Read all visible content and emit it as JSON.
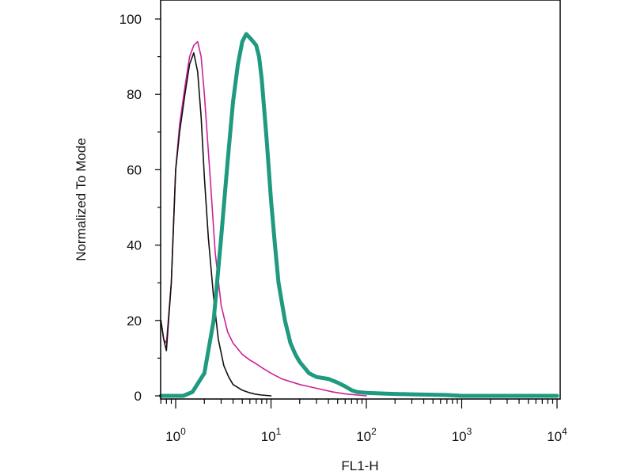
{
  "chart_data": {
    "type": "line",
    "title": "",
    "xlabel": "FL1-H",
    "ylabel": "Normalized To Mode",
    "xscale": "log",
    "xlim": [
      0.7,
      11000
    ],
    "ylim": [
      0,
      100
    ],
    "grid": false,
    "legend": "none",
    "x_ticks": [
      {
        "base": "10",
        "exp": "0",
        "value": 1
      },
      {
        "base": "10",
        "exp": "1",
        "value": 10
      },
      {
        "base": "10",
        "exp": "2",
        "value": 100
      },
      {
        "base": "10",
        "exp": "3",
        "value": 1000
      },
      {
        "base": "10",
        "exp": "4",
        "value": 10000
      }
    ],
    "y_ticks": [
      {
        "label": "0",
        "value": 0
      },
      {
        "label": "20",
        "value": 20
      },
      {
        "label": "40",
        "value": 40
      },
      {
        "label": "60",
        "value": 60
      },
      {
        "label": "80",
        "value": 80
      },
      {
        "label": "100",
        "value": 100
      }
    ],
    "series": [
      {
        "color": "#cc2299",
        "width": "thin",
        "x": [
          0.7,
          0.75,
          0.8,
          0.9,
          1.0,
          1.1,
          1.25,
          1.4,
          1.55,
          1.7,
          1.85,
          2.0,
          2.3,
          2.6,
          3.0,
          3.5,
          4.0,
          5.0,
          6.0,
          7.0,
          8.0,
          10,
          13,
          20,
          30,
          45,
          60,
          80,
          100
        ],
        "y": [
          20,
          15,
          14,
          30,
          60,
          72,
          82,
          90,
          93,
          94,
          90,
          80,
          58,
          38,
          24,
          17,
          14,
          11,
          9.5,
          8.5,
          7.5,
          6,
          4.5,
          3,
          2,
          1,
          0.5,
          0.2,
          0
        ]
      },
      {
        "color": "#111111",
        "width": "thin",
        "x": [
          0.7,
          0.75,
          0.8,
          0.9,
          1.0,
          1.1,
          1.25,
          1.4,
          1.55,
          1.7,
          1.85,
          2.0,
          2.2,
          2.5,
          2.8,
          3.2,
          3.6,
          4.0,
          5.0,
          6.0,
          7.0,
          8.0,
          10
        ],
        "y": [
          20,
          15,
          12,
          30,
          60,
          70,
          80,
          88,
          91,
          86,
          74,
          58,
          42,
          26,
          15,
          8,
          5,
          3,
          1.5,
          0.8,
          0.4,
          0.2,
          0
        ]
      },
      {
        "color": "#1f9a7f",
        "width": "thick",
        "x": [
          0.7,
          1.2,
          1.5,
          2.0,
          2.5,
          3.0,
          3.5,
          4.0,
          4.5,
          5.0,
          5.5,
          6.0,
          6.5,
          7.0,
          7.5,
          8.0,
          9.0,
          10,
          11,
          12,
          14,
          16,
          18,
          20,
          25,
          30,
          40,
          50,
          60,
          70,
          80,
          100,
          150,
          200,
          300,
          500,
          700,
          1000,
          2000,
          5000,
          10000
        ],
        "y": [
          0,
          0,
          1,
          6,
          20,
          42,
          62,
          78,
          88,
          94,
          96,
          95,
          94,
          93,
          90,
          84,
          68,
          52,
          40,
          30,
          20,
          14,
          11,
          9,
          6,
          5,
          4.5,
          3.5,
          2.5,
          1.5,
          1,
          0.8,
          0.6,
          0.5,
          0.4,
          0.3,
          0.2,
          0,
          0,
          0,
          0
        ]
      }
    ]
  }
}
